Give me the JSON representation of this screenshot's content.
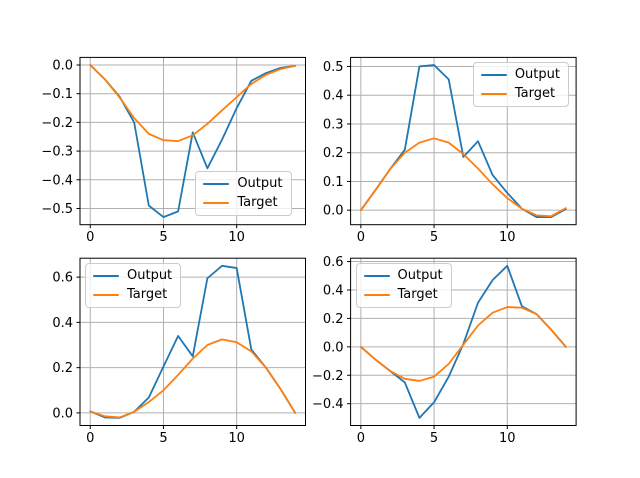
{
  "figure": {
    "background": "#ffffff"
  },
  "colors": {
    "output": "#1f77b4",
    "target": "#ff7f0e",
    "grid": "#b0b0b0",
    "spine": "#000000",
    "tick_text": "#000000",
    "legend_border": "#cccccc",
    "legend_bg": "rgba(255,255,255,0.8)"
  },
  "chart_data": [
    {
      "type": "line",
      "position": "top-left",
      "x": [
        0,
        1,
        2,
        3,
        4,
        5,
        6,
        7,
        8,
        9,
        10,
        11,
        12,
        13,
        14
      ],
      "series": [
        {
          "name": "Output",
          "color_key": "output",
          "values": [
            0.0,
            -0.05,
            -0.11,
            -0.2,
            -0.49,
            -0.53,
            -0.51,
            -0.235,
            -0.36,
            -0.26,
            -0.15,
            -0.055,
            -0.028,
            -0.01,
            -0.003
          ]
        },
        {
          "name": "Target",
          "color_key": "target",
          "values": [
            0.0,
            -0.05,
            -0.113,
            -0.185,
            -0.24,
            -0.262,
            -0.265,
            -0.245,
            -0.205,
            -0.158,
            -0.112,
            -0.066,
            -0.034,
            -0.014,
            -0.003
          ]
        }
      ],
      "xlim": [
        -0.7,
        14.7
      ],
      "ylim": [
        -0.5565,
        0.0265
      ],
      "xticks": {
        "values": [
          0,
          5,
          10
        ],
        "labels": [
          "0",
          "5",
          "10"
        ]
      },
      "yticks": {
        "values": [
          0.0,
          -0.1,
          -0.2,
          -0.3,
          -0.4,
          -0.5
        ],
        "labels": [
          "0.0",
          "−0.1",
          "−0.2",
          "−0.3",
          "−0.4",
          "−0.5"
        ]
      },
      "grid": true,
      "legend_loc": "lower right"
    },
    {
      "type": "line",
      "position": "top-right",
      "x": [
        0,
        1,
        2,
        3,
        4,
        5,
        6,
        7,
        8,
        9,
        10,
        11,
        12,
        13,
        14
      ],
      "series": [
        {
          "name": "Output",
          "color_key": "output",
          "values": [
            0.0,
            0.07,
            0.143,
            0.21,
            0.5,
            0.505,
            0.455,
            0.185,
            0.24,
            0.122,
            0.06,
            0.005,
            -0.024,
            -0.024,
            0.004
          ]
        },
        {
          "name": "Target",
          "color_key": "target",
          "values": [
            0.0,
            0.07,
            0.143,
            0.2,
            0.235,
            0.25,
            0.235,
            0.195,
            0.145,
            0.09,
            0.042,
            0.005,
            -0.018,
            -0.021,
            0.007
          ]
        }
      ],
      "xlim": [
        -0.7,
        14.7
      ],
      "ylim": [
        -0.0505,
        0.5315
      ],
      "xticks": {
        "values": [
          0,
          5,
          10
        ],
        "labels": [
          "0",
          "5",
          "10"
        ]
      },
      "yticks": {
        "values": [
          0.0,
          0.1,
          0.2,
          0.3,
          0.4,
          0.5
        ],
        "labels": [
          "0.0",
          "0.1",
          "0.2",
          "0.3",
          "0.4",
          "0.5"
        ]
      },
      "grid": true,
      "legend_loc": "upper right"
    },
    {
      "type": "line",
      "position": "bottom-left",
      "x": [
        0,
        1,
        2,
        3,
        4,
        5,
        6,
        7,
        8,
        9,
        10,
        11,
        12,
        13,
        14
      ],
      "series": [
        {
          "name": "Output",
          "color_key": "output",
          "values": [
            0.007,
            -0.02,
            -0.022,
            0.005,
            0.068,
            0.205,
            0.34,
            0.25,
            0.595,
            0.65,
            0.64,
            0.28,
            0.2,
            0.105,
            0.0
          ]
        },
        {
          "name": "Target",
          "color_key": "target",
          "values": [
            0.007,
            -0.015,
            -0.02,
            0.005,
            0.048,
            0.1,
            0.168,
            0.24,
            0.3,
            0.325,
            0.312,
            0.272,
            0.2,
            0.105,
            0.0
          ]
        }
      ],
      "xlim": [
        -0.7,
        14.7
      ],
      "ylim": [
        -0.0556,
        0.6836
      ],
      "xticks": {
        "values": [
          0,
          5,
          10
        ],
        "labels": [
          "0",
          "5",
          "10"
        ]
      },
      "yticks": {
        "values": [
          0.0,
          0.2,
          0.4,
          0.6
        ],
        "labels": [
          "0.0",
          "0.2",
          "0.4",
          "0.6"
        ]
      },
      "grid": true,
      "legend_loc": "upper left"
    },
    {
      "type": "line",
      "position": "bottom-right",
      "x": [
        0,
        1,
        2,
        3,
        4,
        5,
        6,
        7,
        8,
        9,
        10,
        11,
        12,
        13,
        14
      ],
      "series": [
        {
          "name": "Output",
          "color_key": "output",
          "values": [
            0.0,
            -0.09,
            -0.17,
            -0.25,
            -0.5,
            -0.39,
            -0.21,
            0.02,
            0.31,
            0.47,
            0.57,
            0.285,
            0.23,
            0.12,
            0.0
          ]
        },
        {
          "name": "Target",
          "color_key": "target",
          "values": [
            0.0,
            -0.09,
            -0.17,
            -0.225,
            -0.24,
            -0.21,
            -0.12,
            0.015,
            0.15,
            0.24,
            0.28,
            0.275,
            0.23,
            0.12,
            0.0
          ]
        }
      ],
      "xlim": [
        -0.7,
        14.7
      ],
      "ylim": [
        -0.5535,
        0.6235
      ],
      "xticks": {
        "values": [
          0,
          5,
          10
        ],
        "labels": [
          "0",
          "5",
          "10"
        ]
      },
      "yticks": {
        "values": [
          -0.4,
          -0.2,
          0.0,
          0.2,
          0.4,
          0.6
        ],
        "labels": [
          "−0.4",
          "−0.2",
          "0.0",
          "0.2",
          "0.4",
          "0.6"
        ]
      },
      "grid": true,
      "legend_loc": "upper left"
    }
  ]
}
